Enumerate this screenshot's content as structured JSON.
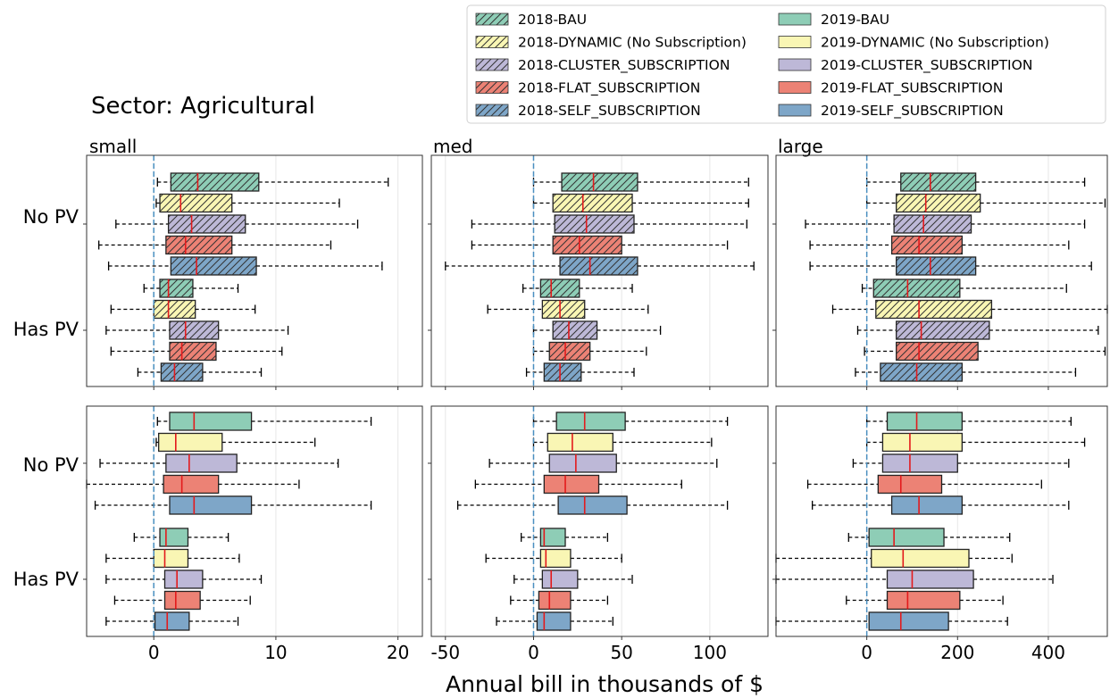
{
  "chart_data": {
    "type": "box",
    "title": "Sector: Agricultural",
    "xlabel": "Annual bill in thousands of $",
    "size_titles": [
      "small",
      "med",
      "large"
    ],
    "row_labels": [
      "No PV",
      "Has PV"
    ],
    "legend": {
      "placement": "top-right",
      "columns": [
        [
          "2018-BAU",
          "2018-DYNAMIC (No Subscription)",
          "2018-CLUSTER_SUBSCRIPTION",
          "2018-FLAT_SUBSCRIPTION",
          "2018-SELF_SUBSCRIPTION"
        ],
        [
          "2019-BAU",
          "2019-DYNAMIC (No Subscription)",
          "2019-CLUSTER_SUBSCRIPTION",
          "2019-FLAT_SUBSCRIPTION",
          "2019-SELF_SUBSCRIPTION"
        ]
      ]
    },
    "series_colors": [
      "#8ecdb6",
      "#f9f6b4",
      "#bdb8d7",
      "#ec8275",
      "#7ea6c8"
    ],
    "hatch_year": "2018",
    "median_color": "#e31a1c",
    "zero_line_color": "#4a8fc0",
    "grid": "vertical",
    "columns": [
      {
        "size": "small",
        "xlim": [
          -5.5,
          22
        ],
        "ticks": [
          0,
          10,
          20
        ],
        "tick_labels": [
          "0",
          "10",
          "20"
        ],
        "panels": [
          {
            "year": "2018",
            "groups": [
              {
                "row": "No PV",
                "boxes": [
                  {
                    "whislo": 0.3,
                    "q1": 1.4,
                    "med": 3.6,
                    "q3": 8.6,
                    "whishi": 19.2
                  },
                  {
                    "whislo": 0.2,
                    "q1": 0.5,
                    "med": 2.2,
                    "q3": 6.4,
                    "whishi": 15.2
                  },
                  {
                    "whislo": -3.1,
                    "q1": 1.2,
                    "med": 3.1,
                    "q3": 7.5,
                    "whishi": 16.7
                  },
                  {
                    "whislo": -4.5,
                    "q1": 1.0,
                    "med": 2.6,
                    "q3": 6.4,
                    "whishi": 14.5
                  },
                  {
                    "whislo": -3.7,
                    "q1": 1.4,
                    "med": 3.5,
                    "q3": 8.4,
                    "whishi": 18.7
                  }
                ]
              },
              {
                "row": "Has PV",
                "boxes": [
                  {
                    "whislo": -0.8,
                    "q1": 0.5,
                    "med": 1.2,
                    "q3": 3.2,
                    "whishi": 6.9
                  },
                  {
                    "whislo": -3.5,
                    "q1": 0.0,
                    "med": 1.2,
                    "q3": 3.4,
                    "whishi": 8.3
                  },
                  {
                    "whislo": -3.9,
                    "q1": 1.3,
                    "med": 2.6,
                    "q3": 5.3,
                    "whishi": 11.0
                  },
                  {
                    "whislo": -3.5,
                    "q1": 1.3,
                    "med": 2.3,
                    "q3": 5.1,
                    "whishi": 10.5
                  },
                  {
                    "whislo": -1.3,
                    "q1": 0.6,
                    "med": 1.7,
                    "q3": 4.0,
                    "whishi": 8.8
                  }
                ]
              }
            ]
          },
          {
            "year": "2019",
            "groups": [
              {
                "row": "No PV",
                "boxes": [
                  {
                    "whislo": 0.3,
                    "q1": 1.3,
                    "med": 3.3,
                    "q3": 8.0,
                    "whishi": 17.8
                  },
                  {
                    "whislo": 0.2,
                    "q1": 0.4,
                    "med": 1.8,
                    "q3": 5.6,
                    "whishi": 13.2
                  },
                  {
                    "whislo": -4.4,
                    "q1": 1.0,
                    "med": 2.9,
                    "q3": 6.8,
                    "whishi": 15.1
                  },
                  {
                    "whislo": -5.5,
                    "q1": 0.8,
                    "med": 2.3,
                    "q3": 5.3,
                    "whishi": 11.9
                  },
                  {
                    "whislo": -4.8,
                    "q1": 1.3,
                    "med": 3.3,
                    "q3": 8.0,
                    "whishi": 17.8
                  }
                ]
              },
              {
                "row": "Has PV",
                "boxes": [
                  {
                    "whislo": -1.6,
                    "q1": 0.5,
                    "med": 1.0,
                    "q3": 2.8,
                    "whishi": 6.1
                  },
                  {
                    "whislo": -3.9,
                    "q1": 0.0,
                    "med": 0.9,
                    "q3": 2.8,
                    "whishi": 7.0
                  },
                  {
                    "whislo": -3.9,
                    "q1": 0.9,
                    "med": 1.9,
                    "q3": 4.0,
                    "whishi": 8.8
                  },
                  {
                    "whislo": -3.2,
                    "q1": 0.9,
                    "med": 1.8,
                    "q3": 3.8,
                    "whishi": 7.9
                  },
                  {
                    "whislo": -3.9,
                    "q1": 0.1,
                    "med": 1.1,
                    "q3": 2.9,
                    "whishi": 6.9
                  }
                ]
              }
            ]
          }
        ]
      },
      {
        "size": "med",
        "xlim": [
          -58,
          133
        ],
        "ticks": [
          -50,
          0,
          50,
          100
        ],
        "tick_labels": [
          "-50",
          "0",
          "50",
          "100"
        ],
        "panels": [
          {
            "year": "2018",
            "groups": [
              {
                "row": "No PV",
                "boxes": [
                  {
                    "whislo": 0.0,
                    "q1": 16.0,
                    "med": 34.0,
                    "q3": 59.0,
                    "whishi": 122.0
                  },
                  {
                    "whislo": 0.0,
                    "q1": 11.0,
                    "med": 28.0,
                    "q3": 56.0,
                    "whishi": 122.0
                  },
                  {
                    "whislo": -35.0,
                    "q1": 12.0,
                    "med": 30.0,
                    "q3": 57.0,
                    "whishi": 121.0
                  },
                  {
                    "whislo": -35.0,
                    "q1": 11.0,
                    "med": 26.0,
                    "q3": 50.0,
                    "whishi": 110.0
                  },
                  {
                    "whislo": -50.0,
                    "q1": 15.0,
                    "med": 32.0,
                    "q3": 59.0,
                    "whishi": 125.0
                  }
                ]
              },
              {
                "row": "Has PV",
                "boxes": [
                  {
                    "whislo": -6.0,
                    "q1": 4.0,
                    "med": 10.0,
                    "q3": 26.0,
                    "whishi": 56.0
                  },
                  {
                    "whislo": -26.0,
                    "q1": 5.0,
                    "med": 15.0,
                    "q3": 29.0,
                    "whishi": 65.0
                  },
                  {
                    "whislo": 0.0,
                    "q1": 11.0,
                    "med": 20.0,
                    "q3": 36.0,
                    "whishi": 72.0
                  },
                  {
                    "whislo": 0.0,
                    "q1": 9.0,
                    "med": 18.0,
                    "q3": 32.0,
                    "whishi": 64.0
                  },
                  {
                    "whislo": -4.0,
                    "q1": 6.0,
                    "med": 15.0,
                    "q3": 27.0,
                    "whishi": 57.0
                  }
                ]
              }
            ]
          },
          {
            "year": "2019",
            "groups": [
              {
                "row": "No PV",
                "boxes": [
                  {
                    "whislo": 0.0,
                    "q1": 13.0,
                    "med": 29.0,
                    "q3": 52.0,
                    "whishi": 110.0
                  },
                  {
                    "whislo": 0.0,
                    "q1": 8.0,
                    "med": 22.0,
                    "q3": 45.0,
                    "whishi": 101.0
                  },
                  {
                    "whislo": -25.0,
                    "q1": 9.0,
                    "med": 24.0,
                    "q3": 47.0,
                    "whishi": 104.0
                  },
                  {
                    "whislo": -33.0,
                    "q1": 6.0,
                    "med": 18.0,
                    "q3": 37.0,
                    "whishi": 84.0
                  },
                  {
                    "whislo": -43.0,
                    "q1": 14.0,
                    "med": 29.0,
                    "q3": 53.0,
                    "whishi": 110.0
                  }
                ]
              },
              {
                "row": "Has PV",
                "boxes": [
                  {
                    "whislo": -7.0,
                    "q1": 4.0,
                    "med": 6.0,
                    "q3": 18.0,
                    "whishi": 42.0
                  },
                  {
                    "whislo": -27.0,
                    "q1": 4.0,
                    "med": 7.0,
                    "q3": 21.0,
                    "whishi": 50.0
                  },
                  {
                    "whislo": -11.0,
                    "q1": 5.0,
                    "med": 10.0,
                    "q3": 25.0,
                    "whishi": 56.0
                  },
                  {
                    "whislo": -13.0,
                    "q1": 3.0,
                    "med": 9.0,
                    "q3": 21.0,
                    "whishi": 42.0
                  },
                  {
                    "whislo": -21.0,
                    "q1": 2.0,
                    "med": 6.0,
                    "q3": 21.0,
                    "whishi": 45.0
                  }
                ]
              }
            ]
          }
        ]
      },
      {
        "size": "large",
        "xlim": [
          -200,
          530
        ],
        "ticks": [
          0,
          200,
          400
        ],
        "tick_labels": [
          "0",
          "200",
          "400"
        ],
        "panels": [
          {
            "year": "2018",
            "groups": [
              {
                "row": "No PV",
                "boxes": [
                  {
                    "whislo": 0,
                    "q1": 75,
                    "med": 140,
                    "q3": 240,
                    "whishi": 480
                  },
                  {
                    "whislo": 0,
                    "q1": 65,
                    "med": 130,
                    "q3": 250,
                    "whishi": 525
                  },
                  {
                    "whislo": -135,
                    "q1": 60,
                    "med": 125,
                    "q3": 230,
                    "whishi": 480
                  },
                  {
                    "whislo": -125,
                    "q1": 55,
                    "med": 115,
                    "q3": 210,
                    "whishi": 445
                  },
                  {
                    "whislo": -125,
                    "q1": 65,
                    "med": 140,
                    "q3": 240,
                    "whishi": 495
                  }
                ]
              },
              {
                "row": "Has PV",
                "boxes": [
                  {
                    "whislo": -10,
                    "q1": 15,
                    "med": 90,
                    "q3": 205,
                    "whishi": 440
                  },
                  {
                    "whislo": -75,
                    "q1": 20,
                    "med": 115,
                    "q3": 275,
                    "whishi": 530
                  },
                  {
                    "whislo": -20,
                    "q1": 65,
                    "med": 120,
                    "q3": 270,
                    "whishi": 510
                  },
                  {
                    "whislo": -5,
                    "q1": 65,
                    "med": 115,
                    "q3": 245,
                    "whishi": 525
                  },
                  {
                    "whislo": -25,
                    "q1": 30,
                    "med": 110,
                    "q3": 210,
                    "whishi": 460
                  }
                ]
              }
            ]
          },
          {
            "year": "2019",
            "groups": [
              {
                "row": "No PV",
                "boxes": [
                  {
                    "whislo": 0,
                    "q1": 45,
                    "med": 110,
                    "q3": 210,
                    "whishi": 450
                  },
                  {
                    "whislo": 0,
                    "q1": 35,
                    "med": 95,
                    "q3": 210,
                    "whishi": 480
                  },
                  {
                    "whislo": -30,
                    "q1": 35,
                    "med": 95,
                    "q3": 200,
                    "whishi": 445
                  },
                  {
                    "whislo": -130,
                    "q1": 25,
                    "med": 75,
                    "q3": 165,
                    "whishi": 385
                  },
                  {
                    "whislo": -120,
                    "q1": 55,
                    "med": 115,
                    "q3": 210,
                    "whishi": 445
                  }
                ]
              },
              {
                "row": "Has PV",
                "boxes": [
                  {
                    "whislo": -40,
                    "q1": 5,
                    "med": 60,
                    "q3": 170,
                    "whishi": 315
                  },
                  {
                    "whislo": -200,
                    "q1": 10,
                    "med": 80,
                    "q3": 225,
                    "whishi": 320
                  },
                  {
                    "whislo": -200,
                    "q1": 45,
                    "med": 100,
                    "q3": 235,
                    "whishi": 410
                  },
                  {
                    "whislo": -45,
                    "q1": 45,
                    "med": 90,
                    "q3": 205,
                    "whishi": 300
                  },
                  {
                    "whislo": -200,
                    "q1": 5,
                    "med": 75,
                    "q3": 180,
                    "whishi": 310
                  }
                ]
              }
            ]
          }
        ]
      }
    ]
  }
}
